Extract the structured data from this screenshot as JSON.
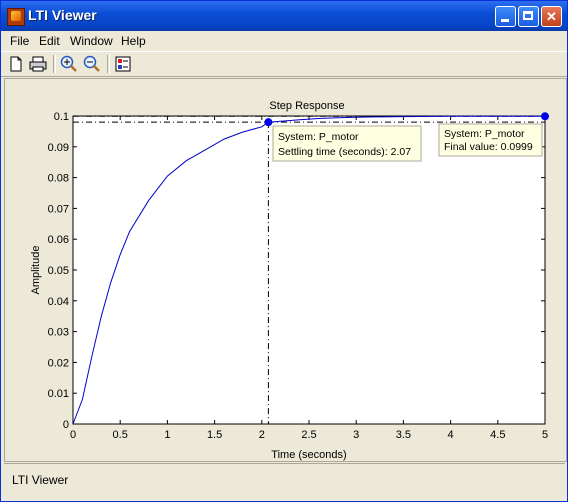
{
  "window": {
    "title": "LTI Viewer"
  },
  "menu": [
    "File",
    "Edit",
    "Window",
    "Help"
  ],
  "toolbar": [
    "new-icon",
    "print-icon",
    "zoom-in-icon",
    "zoom-out-icon",
    "plot-config-icon"
  ],
  "plot": {
    "title": "Step Response",
    "xlabel": "Time (seconds)",
    "ylabel": "Amplitude",
    "xticks": [
      "0",
      "0.5",
      "1",
      "1.5",
      "2",
      "2.5",
      "3",
      "3.5",
      "4",
      "4.5",
      "5"
    ],
    "yticks": [
      "0",
      "0.01",
      "0.02",
      "0.03",
      "0.04",
      "0.05",
      "0.06",
      "0.07",
      "0.08",
      "0.09",
      "0.1"
    ],
    "tip1_line1": "System: P_motor",
    "tip1_line2": "Settling time (seconds): 2.07",
    "tip2_line1": "System: P_motor",
    "tip2_line2": "Final value: 0.0999"
  },
  "chart_data": {
    "type": "line",
    "title": "Step Response",
    "xlabel": "Time (seconds)",
    "ylabel": "Amplitude",
    "xlim": [
      0,
      5
    ],
    "ylim": [
      0,
      0.1
    ],
    "series": [
      {
        "name": "P_motor",
        "color": "#0000cc",
        "x": [
          0,
          0.1,
          0.2,
          0.3,
          0.4,
          0.5,
          0.6,
          0.8,
          1.0,
          1.2,
          1.4,
          1.6,
          1.8,
          2.0,
          2.07,
          2.2,
          2.4,
          2.6,
          2.8,
          3.0,
          3.2,
          3.5,
          4.0,
          4.5,
          5.0
        ],
        "y": [
          0,
          0.008,
          0.022,
          0.035,
          0.046,
          0.055,
          0.0625,
          0.0725,
          0.0805,
          0.0855,
          0.089,
          0.0925,
          0.0948,
          0.0965,
          0.098,
          0.0983,
          0.0988,
          0.0992,
          0.0994,
          0.0996,
          0.0997,
          0.0998,
          0.0999,
          0.0999,
          0.0999
        ]
      }
    ],
    "annotations": [
      {
        "label": "Settling time (seconds)",
        "x": 2.07,
        "y": 0.098
      },
      {
        "label": "Final value",
        "x": 5.0,
        "y": 0.0999
      }
    ]
  },
  "status": "LTI Viewer"
}
